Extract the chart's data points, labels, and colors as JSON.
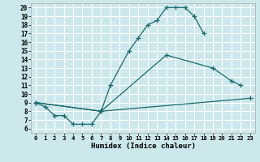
{
  "xlabel": "Humidex (Indice chaleur)",
  "bg_color": "#cce8ec",
  "grid_color": "#ffffff",
  "line_color": "#1a6b6b",
  "xlim": [
    -0.5,
    23.5
  ],
  "ylim": [
    5.5,
    20.5
  ],
  "xticks": [
    0,
    1,
    2,
    3,
    4,
    5,
    6,
    7,
    8,
    9,
    10,
    11,
    12,
    13,
    14,
    15,
    16,
    17,
    18,
    19,
    20,
    21,
    22,
    23
  ],
  "yticks": [
    6,
    7,
    8,
    9,
    10,
    11,
    12,
    13,
    14,
    15,
    16,
    17,
    18,
    19,
    20
  ],
  "curve1": {
    "x": [
      0,
      1,
      2,
      3,
      4,
      5,
      6,
      7,
      8,
      10,
      11,
      12,
      13,
      14,
      15,
      16,
      17,
      18
    ],
    "y": [
      9,
      8.5,
      7.5,
      7.5,
      6.5,
      6.5,
      6.5,
      8.0,
      11.0,
      15.0,
      16.5,
      18.0,
      18.5,
      20.0,
      20.0,
      20.0,
      19.0,
      17.0
    ]
  },
  "curve2": {
    "x": [
      0,
      7,
      14,
      19,
      21,
      22
    ],
    "y": [
      9.0,
      8.0,
      14.5,
      13.0,
      11.5,
      11.0
    ]
  },
  "curve3": {
    "x": [
      0,
      7,
      23
    ],
    "y": [
      9.0,
      8.0,
      9.5
    ]
  }
}
